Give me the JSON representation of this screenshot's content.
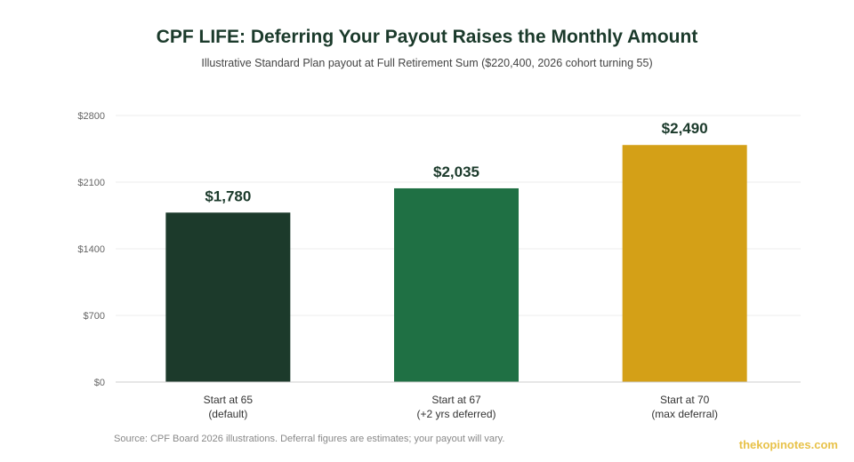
{
  "title": "CPF LIFE: Deferring Your Payout Raises the Monthly Amount",
  "subtitle": "Illustrative Standard Plan payout at Full Retirement Sum ($220,400, 2026 cohort turning 55)",
  "source": "Source: CPF Board 2026 illustrations. Deferral figures are estimates; your payout will vary.",
  "brand": "thekopinotes.com",
  "chart_data": {
    "type": "bar",
    "categories": [
      [
        "Start at 65",
        "(default)"
      ],
      [
        "Start at 67",
        "(+2 yrs deferred)"
      ],
      [
        "Start at 70",
        "(max deferral)"
      ]
    ],
    "values": [
      1780,
      2035,
      2490
    ],
    "value_labels": [
      "$1,780",
      "$2,035",
      "$2,490"
    ],
    "colors": [
      "#1c3a2b",
      "#1f7044",
      "#d4a017"
    ],
    "ylim": [
      0,
      2800
    ],
    "yticks": [
      0,
      700,
      1400,
      2100,
      2800
    ],
    "ytick_labels": [
      "$0",
      "$700",
      "$1400",
      "$2100",
      "$2800"
    ],
    "grid": true,
    "legend": false
  }
}
